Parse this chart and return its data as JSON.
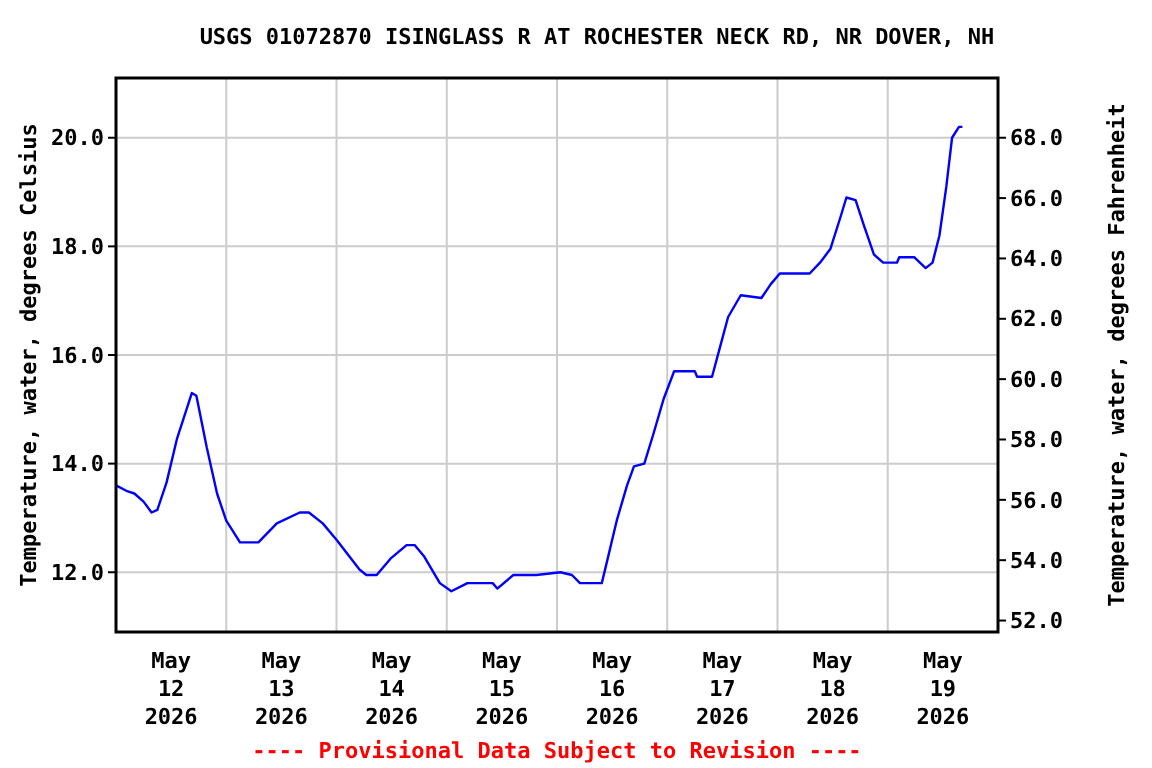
{
  "chart_data": {
    "type": "line",
    "title": "USGS 01072870 ISINGLASS R AT ROCHESTER NECK RD, NR DOVER, NH",
    "ylabel": "Temperature, water, degrees Celsius",
    "y2label": "Temperature, water, degrees Fahrenheit",
    "annotations": [
      "---- Provisional Data Subject to Revision ----"
    ],
    "x": [
      "2026-05-12T00:00",
      "2026-05-12T02:15",
      "2026-05-12T04:00",
      "2026-05-12T06:00",
      "2026-05-12T07:45",
      "2026-05-12T09:00",
      "2026-05-12T11:00",
      "2026-05-12T13:15",
      "2026-05-12T16:30",
      "2026-05-12T17:30",
      "2026-05-12T19:45",
      "2026-05-12T22:00",
      "2026-05-13T00:00",
      "2026-05-13T03:00",
      "2026-05-13T07:00",
      "2026-05-13T11:00",
      "2026-05-13T16:00",
      "2026-05-13T18:00",
      "2026-05-13T21:00",
      "2026-05-14T00:00",
      "2026-05-14T05:00",
      "2026-05-14T06:30",
      "2026-05-14T08:45",
      "2026-05-14T11:45",
      "2026-05-14T15:15",
      "2026-05-14T17:00",
      "2026-05-14T19:00",
      "2026-05-14T22:30",
      "2026-05-15T01:00",
      "2026-05-15T04:30",
      "2026-05-15T10:00",
      "2026-05-15T11:00",
      "2026-05-15T14:30",
      "2026-05-15T19:30",
      "2026-05-16T00:45",
      "2026-05-16T03:15",
      "2026-05-16T05:00",
      "2026-05-16T09:45",
      "2026-05-16T10:45",
      "2026-05-16T13:00",
      "2026-05-16T15:15",
      "2026-05-16T16:45",
      "2026-05-16T19:00",
      "2026-05-16T21:00",
      "2026-05-16T23:15",
      "2026-05-17T01:30",
      "2026-05-17T06:00",
      "2026-05-17T06:30",
      "2026-05-17T09:45",
      "2026-05-17T11:30",
      "2026-05-17T13:15",
      "2026-05-17T16:00",
      "2026-05-17T20:30",
      "2026-05-17T22:30",
      "2026-05-18T00:30",
      "2026-05-18T07:00",
      "2026-05-18T09:15",
      "2026-05-18T11:30",
      "2026-05-18T13:45",
      "2026-05-18T15:00",
      "2026-05-18T17:00",
      "2026-05-18T18:45",
      "2026-05-18T21:00",
      "2026-05-18T23:00",
      "2026-05-19T02:00",
      "2026-05-19T02:30",
      "2026-05-19T05:45",
      "2026-05-19T07:00",
      "2026-05-19T08:15",
      "2026-05-19T09:45",
      "2026-05-19T11:15",
      "2026-05-19T12:45",
      "2026-05-19T14:00",
      "2026-05-19T15:30",
      "2026-05-19T16:15"
    ],
    "series": [
      {
        "color": "#0000ff",
        "values": [
          13.6,
          13.5,
          13.45,
          13.3,
          13.1,
          13.15,
          13.65,
          14.45,
          15.3,
          15.25,
          14.3,
          13.45,
          12.95,
          12.55,
          12.55,
          12.9,
          13.1,
          13.1,
          12.9,
          12.6,
          12.05,
          11.95,
          11.95,
          12.25,
          12.5,
          12.5,
          12.3,
          11.8,
          11.65,
          11.8,
          11.8,
          11.7,
          11.95,
          11.95,
          12.0,
          11.95,
          11.8,
          11.8,
          12.15,
          12.95,
          13.6,
          13.95,
          14.0,
          14.55,
          15.2,
          15.7,
          15.7,
          15.6,
          15.6,
          16.15,
          16.7,
          17.1,
          17.05,
          17.3,
          17.5,
          17.5,
          17.7,
          17.95,
          18.55,
          18.9,
          18.85,
          18.4,
          17.85,
          17.7,
          17.7,
          17.8,
          17.8,
          17.7,
          17.6,
          17.7,
          18.2,
          19.1,
          20.0,
          20.2,
          20.2
        ]
      }
    ],
    "xlim": [
      "2026-05-12T00:00",
      "2026-05-20T00:00"
    ],
    "xticks": [
      {
        "value": "2026-05-12T12:00",
        "label": "May\n12\n2026"
      },
      {
        "value": "2026-05-13T00:00",
        "label": null
      },
      {
        "value": "2026-05-13T12:00",
        "label": "May\n13\n2026"
      },
      {
        "value": "2026-05-14T00:00",
        "label": null
      },
      {
        "value": "2026-05-14T12:00",
        "label": "May\n14\n2026"
      },
      {
        "value": "2026-05-15T00:00",
        "label": null
      },
      {
        "value": "2026-05-15T12:00",
        "label": "May\n15\n2026"
      },
      {
        "value": "2026-05-16T00:00",
        "label": null
      },
      {
        "value": "2026-05-16T12:00",
        "label": "May\n16\n2026"
      },
      {
        "value": "2026-05-17T00:00",
        "label": null
      },
      {
        "value": "2026-05-17T12:00",
        "label": "May\n17\n2026"
      },
      {
        "value": "2026-05-18T00:00",
        "label": null
      },
      {
        "value": "2026-05-18T12:00",
        "label": "May\n18\n2026"
      },
      {
        "value": "2026-05-19T00:00",
        "label": null
      },
      {
        "value": "2026-05-19T12:00",
        "label": "May\n19\n2026"
      }
    ],
    "ylim": [
      10.9,
      21.1
    ],
    "yticks": [
      {
        "value": 12,
        "label": "12.0"
      },
      {
        "value": 14,
        "label": "14.0"
      },
      {
        "value": 16,
        "label": "16.0"
      },
      {
        "value": 18,
        "label": "18.0"
      },
      {
        "value": 20,
        "label": "20.0"
      }
    ],
    "y2lim": [
      51.62,
      69.98
    ],
    "y2ticks": [
      {
        "value": 52,
        "label": "52.0"
      },
      {
        "value": 54,
        "label": "54.0"
      },
      {
        "value": 56,
        "label": "56.0"
      },
      {
        "value": 58,
        "label": "58.0"
      },
      {
        "value": 60,
        "label": "60.0"
      },
      {
        "value": 62,
        "label": "62.0"
      },
      {
        "value": 64,
        "label": "64.0"
      },
      {
        "value": 66,
        "label": "66.0"
      },
      {
        "value": 68,
        "label": "68.0"
      }
    ],
    "grid": true,
    "line_style": "solid"
  }
}
